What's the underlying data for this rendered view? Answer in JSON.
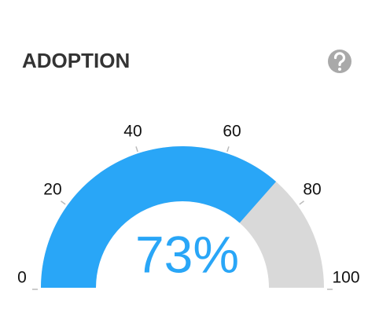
{
  "chart_data": {
    "type": "gauge",
    "title": "ADOPTION",
    "value": 73,
    "value_label": "73%",
    "color": "#29a6f7",
    "track_color": "#d9d9d9",
    "ylim": [
      0,
      100
    ],
    "yticks": [
      0,
      20,
      40,
      60,
      80,
      100
    ]
  }
}
